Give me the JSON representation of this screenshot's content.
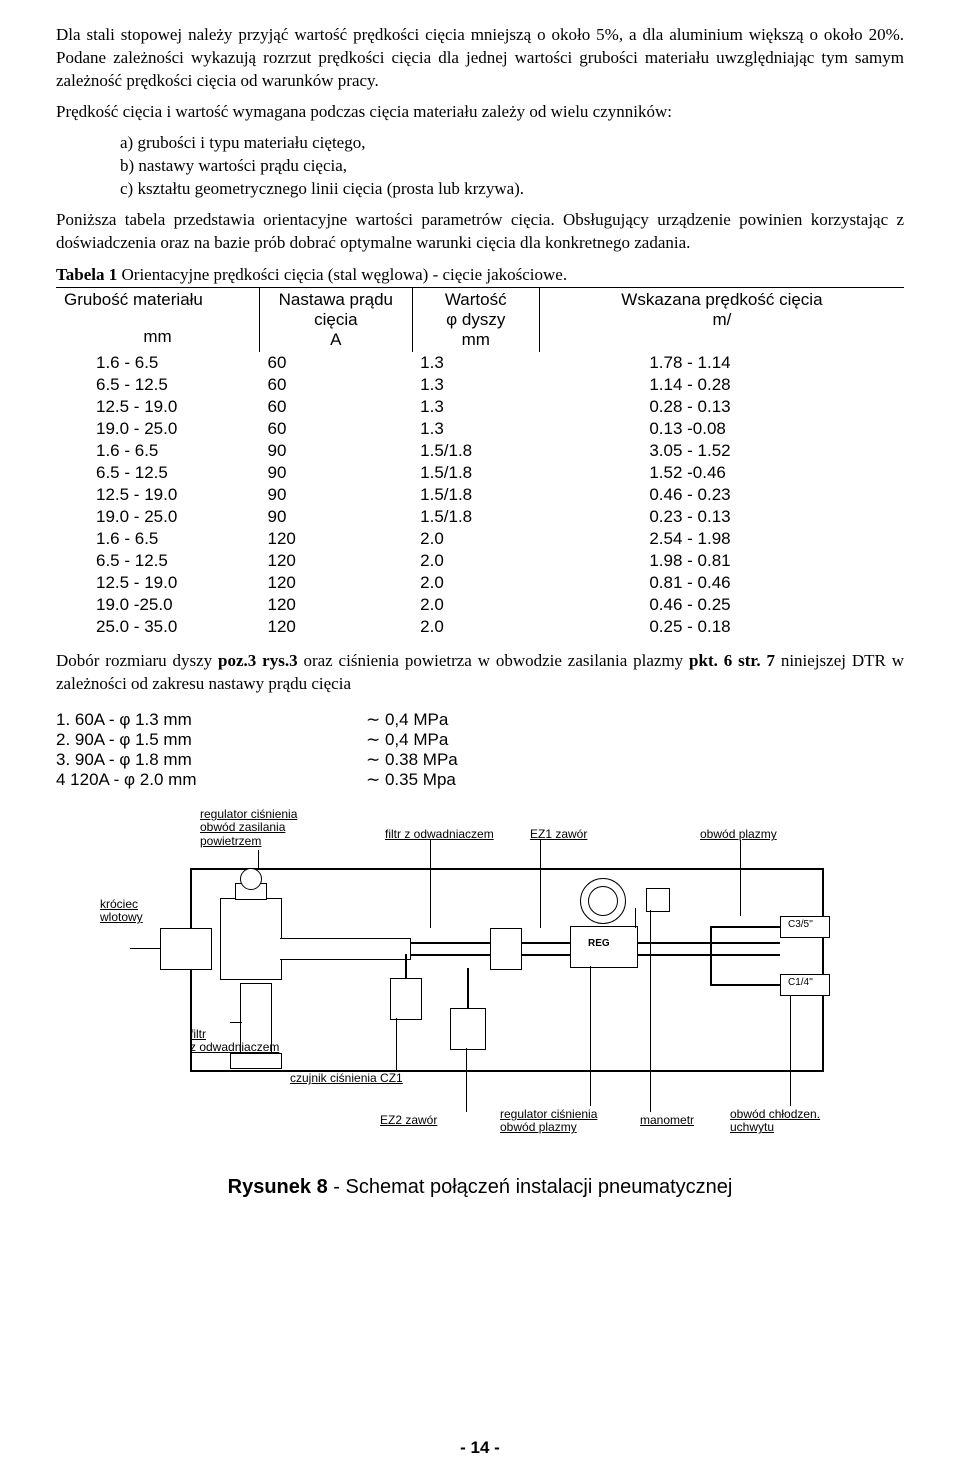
{
  "paragraphs": {
    "p1": "Dla stali stopowej należy przyjąć wartość prędkości cięcia mniejszą o około 5%, a dla aluminium większą o około 20%. Podane zależności wykazują rozrzut prędkości cięcia dla jednej wartości grubości materiału uwzględniając tym samym zależność prędkości cięcia od warunków pracy.",
    "p2": "Prędkość cięcia i wartość wymagana podczas cięcia materiału zależy od wielu czynników:",
    "a": "a)  grubości i typu materiału ciętego,",
    "b": "b)  nastawy wartości prądu cięcia,",
    "c": "c)  kształtu geometrycznego linii cięcia (prosta lub krzywa).",
    "p3": "Poniższa tabela przedstawia orientacyjne wartości parametrów cięcia. Obsługujący urządzenie powinien korzystając z doświadczenia oraz na bazie prób dobrać optymalne warunki cięcia dla konkretnego zadania.",
    "p4a": "Dobór rozmiaru dyszy ",
    "p4b": "poz.3 rys.3",
    "p4c": " oraz ciśnienia powietrza w obwodzie zasilania plazmy ",
    "p4d": "pkt. 6 str. 7",
    "p4e": " niniejszej DTR w zależności od zakresu nastawy prądu cięcia"
  },
  "table": {
    "title_bold": "Tabela 1",
    "title_rest": " Orientacyjne prędkości cięcia (stal węglowa) - cięcie jakościowe.",
    "headers": {
      "h1l1": "Grubość materiału",
      "h1l2": "mm",
      "h2l1": "Nastawa prądu",
      "h2l2": "cięcia",
      "h2l3": "A",
      "h3l1": "Wartość",
      "h3l2": "φ dyszy",
      "h3l3": "mm",
      "h4l1": "Wskazana prędkość cięcia",
      "h4l2": "m/"
    },
    "rows": [
      {
        "g": "1.6 - 6.5",
        "a": "60",
        "d": "1.3",
        "v": "1.78 - 1.14"
      },
      {
        "g": "6.5 - 12.5",
        "a": "60",
        "d": "1.3",
        "v": "1.14 - 0.28"
      },
      {
        "g": "12.5 - 19.0",
        "a": "60",
        "d": "1.3",
        "v": "0.28 - 0.13"
      },
      {
        "g": "19.0 - 25.0",
        "a": "60",
        "d": "1.3",
        "v": "0.13 -0.08"
      },
      {
        "g": "1.6 - 6.5",
        "a": "90",
        "d": "1.5/1.8",
        "v": "3.05 - 1.52"
      },
      {
        "g": "6.5 - 12.5",
        "a": "90",
        "d": "1.5/1.8",
        "v": "1.52 -0.46"
      },
      {
        "g": "12.5 - 19.0",
        "a": "90",
        "d": "1.5/1.8",
        "v": "0.46 - 0.23"
      },
      {
        "g": "19.0 - 25.0",
        "a": "90",
        "d": "1.5/1.8",
        "v": "0.23 - 0.13"
      },
      {
        "g": "1.6 - 6.5",
        "a": "120",
        "d": "2.0",
        "v": "2.54 - 1.98"
      },
      {
        "g": "6.5 - 12.5",
        "a": "120",
        "d": "2.0",
        "v": "1.98 - 0.81"
      },
      {
        "g": "12.5 - 19.0",
        "a": "120",
        "d": "2.0",
        "v": "0.81 - 0.46"
      },
      {
        "g": "19.0 -25.0",
        "a": "120",
        "d": "2.0",
        "v": "0.46 - 0.25"
      },
      {
        "g": "25.0 - 35.0",
        "a": "120",
        "d": "2.0",
        "v": "0.25 - 0.18"
      }
    ]
  },
  "nozzle": {
    "rows": [
      {
        "l": "1. 60A - φ 1.3 mm",
        "r": "∼ 0,4 MPa"
      },
      {
        "l": "2. 90A - φ 1.5 mm",
        "r": "∼ 0,4 MPa"
      },
      {
        "l": "3. 90A - φ 1.8 mm",
        "r": "∼ 0.38 MPa"
      },
      {
        "l": "4 120A - φ 2.0 mm",
        "r": "∼ 0.35 Mpa"
      }
    ]
  },
  "figure": {
    "labels": {
      "reg_cisn": "regulator ciśnienia",
      "obw_pow1": "obwód zasilania",
      "obw_pow2": "powietrzem",
      "filtr_odw": "filtr z odwadniaczem",
      "ez1": "EZ1 zawór",
      "obw_plazmy": "obwód plazmy",
      "krociec1": "króciec",
      "krociec2": "wlotowy",
      "filtr_bottom": "filtr",
      "z_odw": "z odwadniaczem",
      "czujnik": "czujnik ciśnienia CZ1",
      "ez2": "EZ2  zawór",
      "reg_pl1": "regulator ciśnienia",
      "reg_pl2": "obwód  plazmy",
      "manometr": "manometr",
      "obw_chl1": "obwód chłodzen.",
      "obw_chl2": "uchwytu",
      "reg_inside": "REG",
      "c35": "C3/5''",
      "c14": "C1/4''"
    }
  },
  "caption": {
    "bold": "Rysunek 8",
    "rest": " - Schemat połączeń instalacji pneumatycznej"
  },
  "pageno": "- 14 -"
}
